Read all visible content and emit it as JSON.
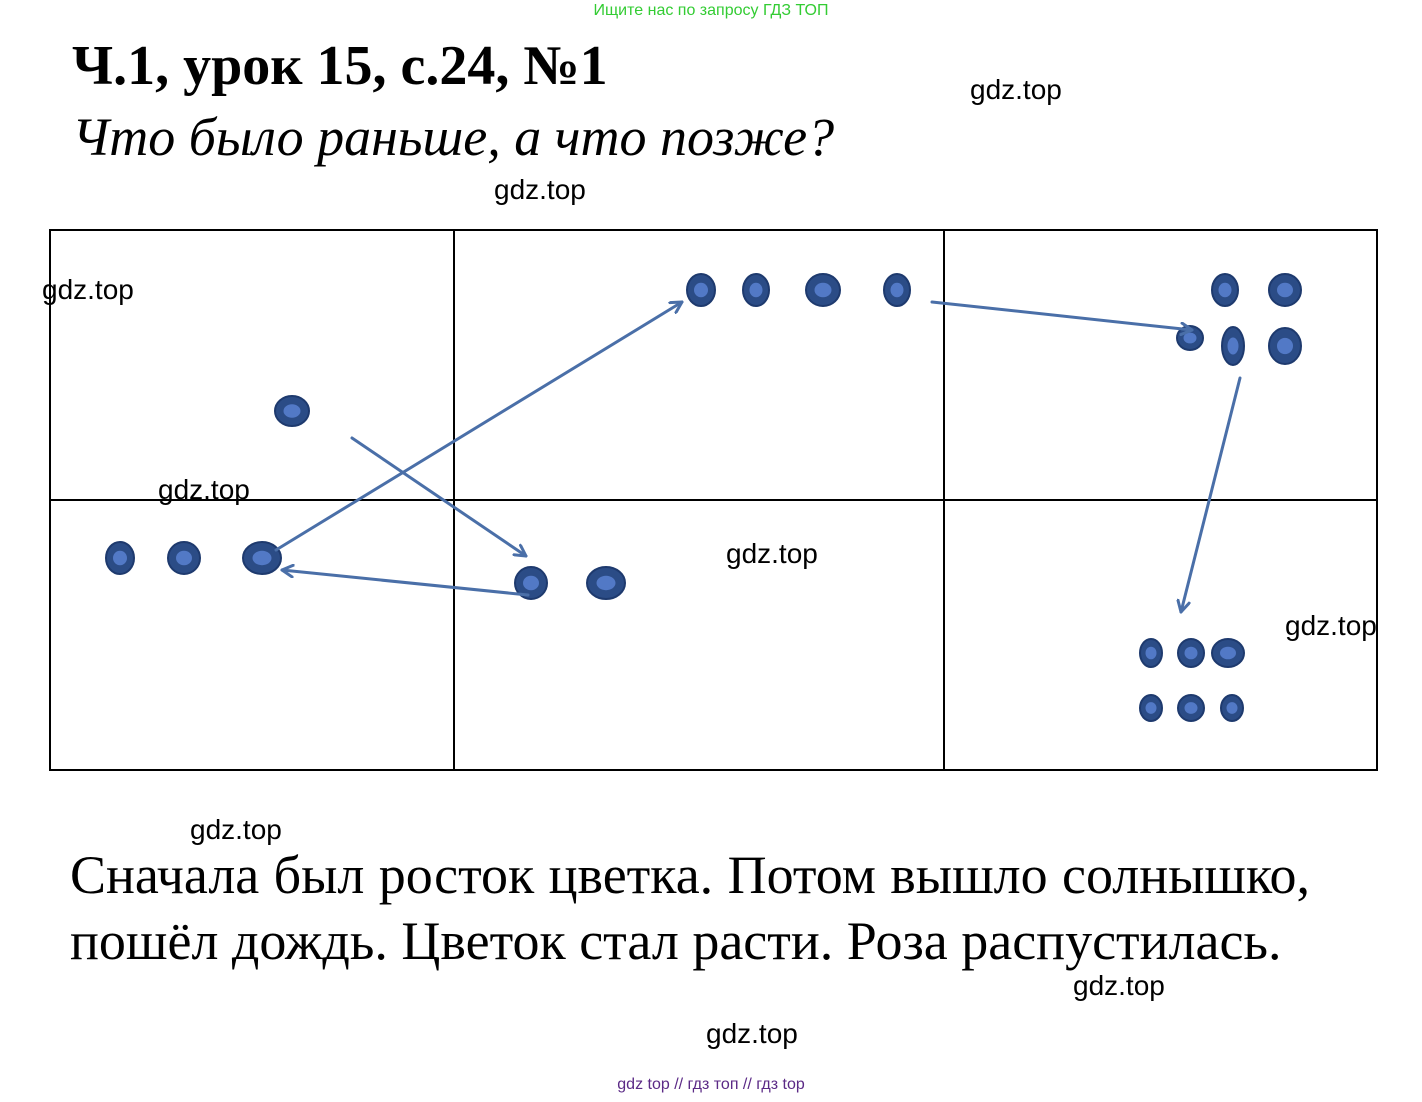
{
  "banner": "Ищите нас по запросу ГДЗ ТОП",
  "title": "Ч.1, урок 15, с.24, №1",
  "subtitle": "Что было раньше, а что позже?",
  "watermark": "gdz.top",
  "answer": "Сначала был росток цветка. Потом вышло солнышко, пошёл дождь. Цветок стал расти. Роза распустилась.",
  "footer": "gdz top  //  гдз топ  //  гдз top",
  "colors": {
    "dot_outer": "#2b4c86",
    "dot_inner": "#5279c6",
    "arrow": "#4a6fa8",
    "banner": "#33cc33",
    "footer": "#5b2a86"
  },
  "cells": [
    {
      "id": "top-left",
      "dots": 1
    },
    {
      "id": "top-middle",
      "dots": 4
    },
    {
      "id": "top-right",
      "dots": 5
    },
    {
      "id": "bottom-left",
      "dots": 3
    },
    {
      "id": "bottom-middle",
      "dots": 2
    },
    {
      "id": "bottom-right",
      "dots": 6
    }
  ],
  "sequence": [
    "top-left",
    "bottom-middle",
    "bottom-left",
    "top-middle",
    "top-right",
    "bottom-right"
  ]
}
